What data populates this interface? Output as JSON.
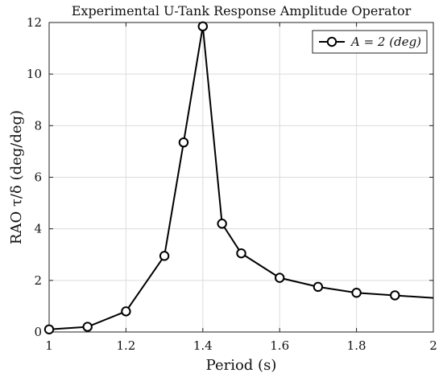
{
  "chart_data": {
    "type": "line",
    "title": "Experimental U-Tank Response Amplitude Operator",
    "xlabel": "Period (s)",
    "ylabel": "RAO τ/δ (deg/deg)",
    "xlim": [
      1,
      2
    ],
    "ylim": [
      0,
      12
    ],
    "xticks": [
      "1",
      "1.2",
      "1.4",
      "1.6",
      "1.8",
      "2"
    ],
    "yticks": [
      "0",
      "2",
      "4",
      "6",
      "8",
      "10",
      "12"
    ],
    "grid": true,
    "legend_position": "top-right",
    "series": [
      {
        "name": "A = 2 (deg)",
        "marker": "circle",
        "color": "#000000",
        "x": [
          1.0,
          1.1,
          1.2,
          1.3,
          1.35,
          1.4,
          1.45,
          1.5,
          1.6,
          1.7,
          1.8,
          1.9,
          2.0
        ],
        "y": [
          0.1,
          0.2,
          0.8,
          2.95,
          7.35,
          11.85,
          4.2,
          3.05,
          2.1,
          1.75,
          1.52,
          1.42,
          1.32
        ],
        "markers_shown": [
          true,
          true,
          true,
          true,
          true,
          true,
          true,
          true,
          true,
          true,
          true,
          true,
          false
        ]
      }
    ]
  }
}
